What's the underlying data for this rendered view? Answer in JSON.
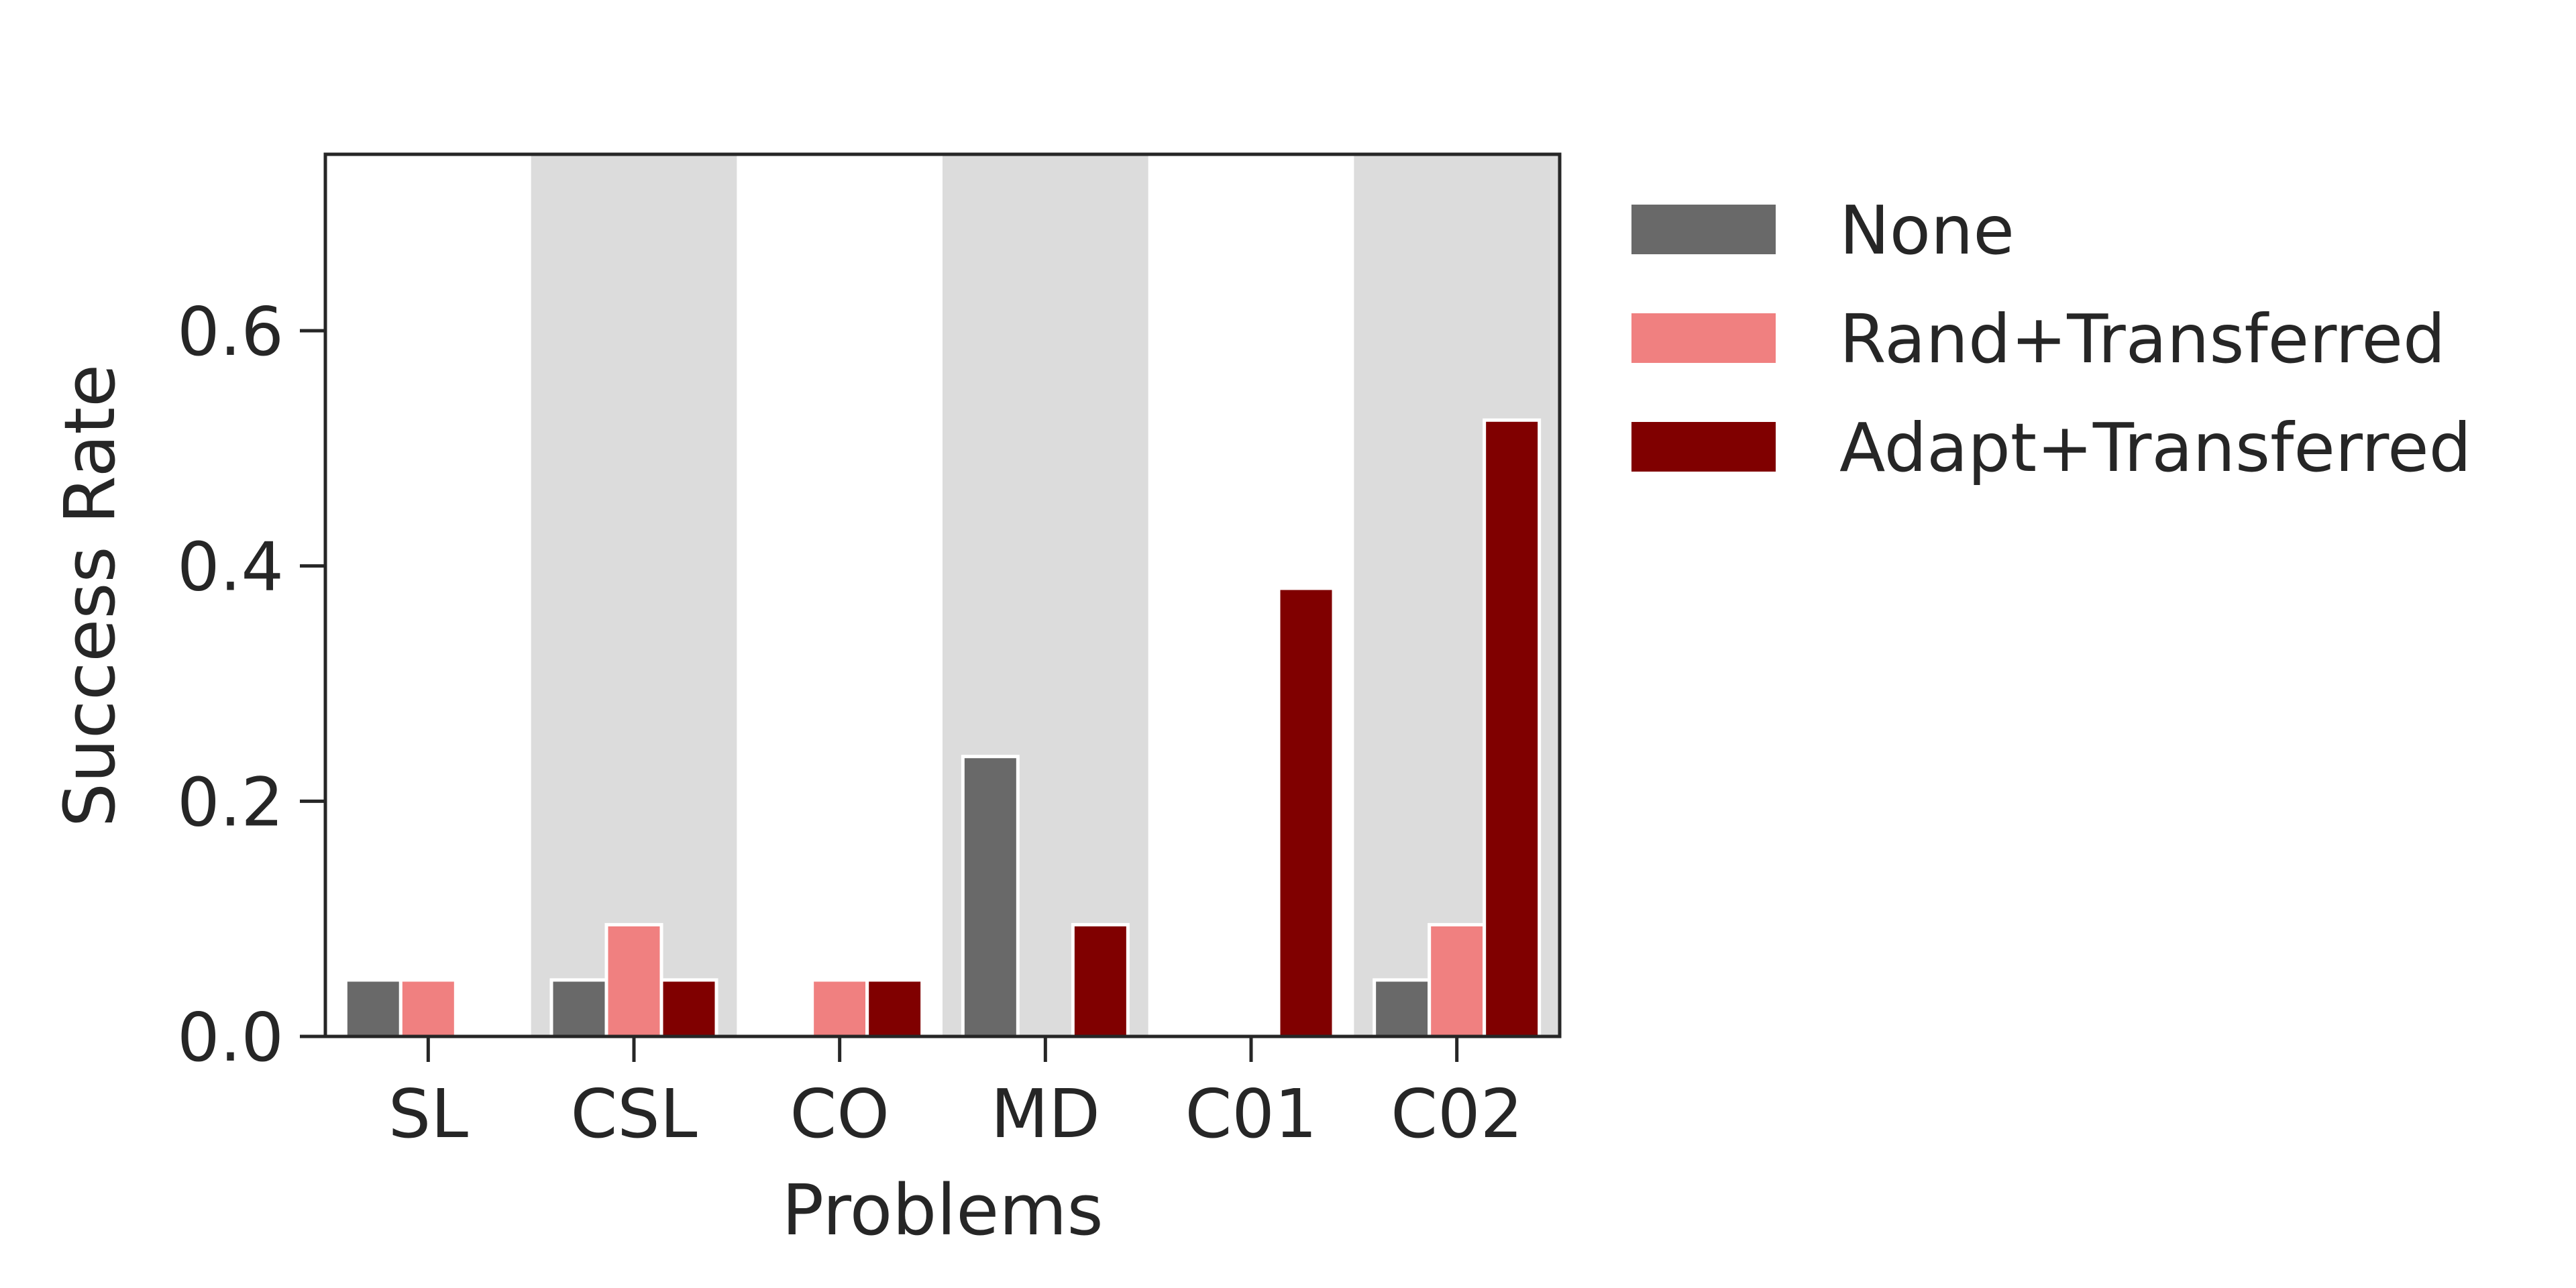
{
  "chart_data": {
    "type": "bar",
    "categories": [
      "SL",
      "CSL",
      "CO",
      "MD",
      "C01",
      "C02"
    ],
    "series": [
      {
        "name": "None",
        "values": [
          0.048,
          0.048,
          0.0,
          0.238,
          0.0,
          0.048
        ]
      },
      {
        "name": "Rand+Transferred",
        "values": [
          0.048,
          0.095,
          0.048,
          0.0,
          0.0,
          0.095
        ]
      },
      {
        "name": "Adapt+Transferred",
        "values": [
          0.0,
          0.048,
          0.048,
          0.095,
          0.381,
          0.524
        ]
      }
    ],
    "xlabel": "Problems",
    "ylabel": "Success Rate",
    "ylim": [
      0,
      0.75
    ],
    "yticks": [
      0.0,
      0.2,
      0.4,
      0.6
    ],
    "ytick_labels": [
      "0.0",
      "0.2",
      "0.4",
      "0.6"
    ],
    "shaded_categories": [
      "CSL",
      "MD",
      "C02"
    ],
    "grid": false,
    "legend_position": "outside-right-top"
  },
  "colors": {
    "None": "#696969",
    "Rand+Transferred": "#f08080",
    "Adapt+Transferred": "#800000",
    "band": "#dcdcdc",
    "axis": "#262626"
  }
}
